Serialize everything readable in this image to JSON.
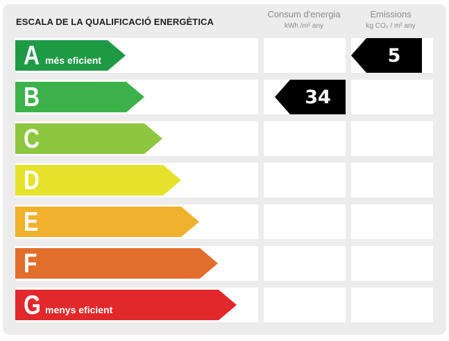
{
  "title": "ESCALA DE LA QUALIFICACIÓ ENERGÈTICA",
  "columns": {
    "energy": {
      "label": "Consum d'energia",
      "unit": "kWh /m² any"
    },
    "emissions": {
      "label": "Emissions",
      "unit": "kg CO₂ / m² any"
    }
  },
  "rows": [
    {
      "letter": "A",
      "sub": "més eficient",
      "color": "#1e9a45"
    },
    {
      "letter": "B",
      "sub": "",
      "color": "#3db24a"
    },
    {
      "letter": "C",
      "sub": "",
      "color": "#8dc63f"
    },
    {
      "letter": "D",
      "sub": "",
      "color": "#e6e22b"
    },
    {
      "letter": "E",
      "sub": "",
      "color": "#f0b22c"
    },
    {
      "letter": "F",
      "sub": "",
      "color": "#e26e2c"
    },
    {
      "letter": "G",
      "sub": "menys eficient",
      "color": "#e1282b"
    }
  ],
  "ratings": {
    "energy": {
      "value": "34",
      "letter": "B"
    },
    "emissions": {
      "value": "5",
      "letter": "A"
    }
  }
}
